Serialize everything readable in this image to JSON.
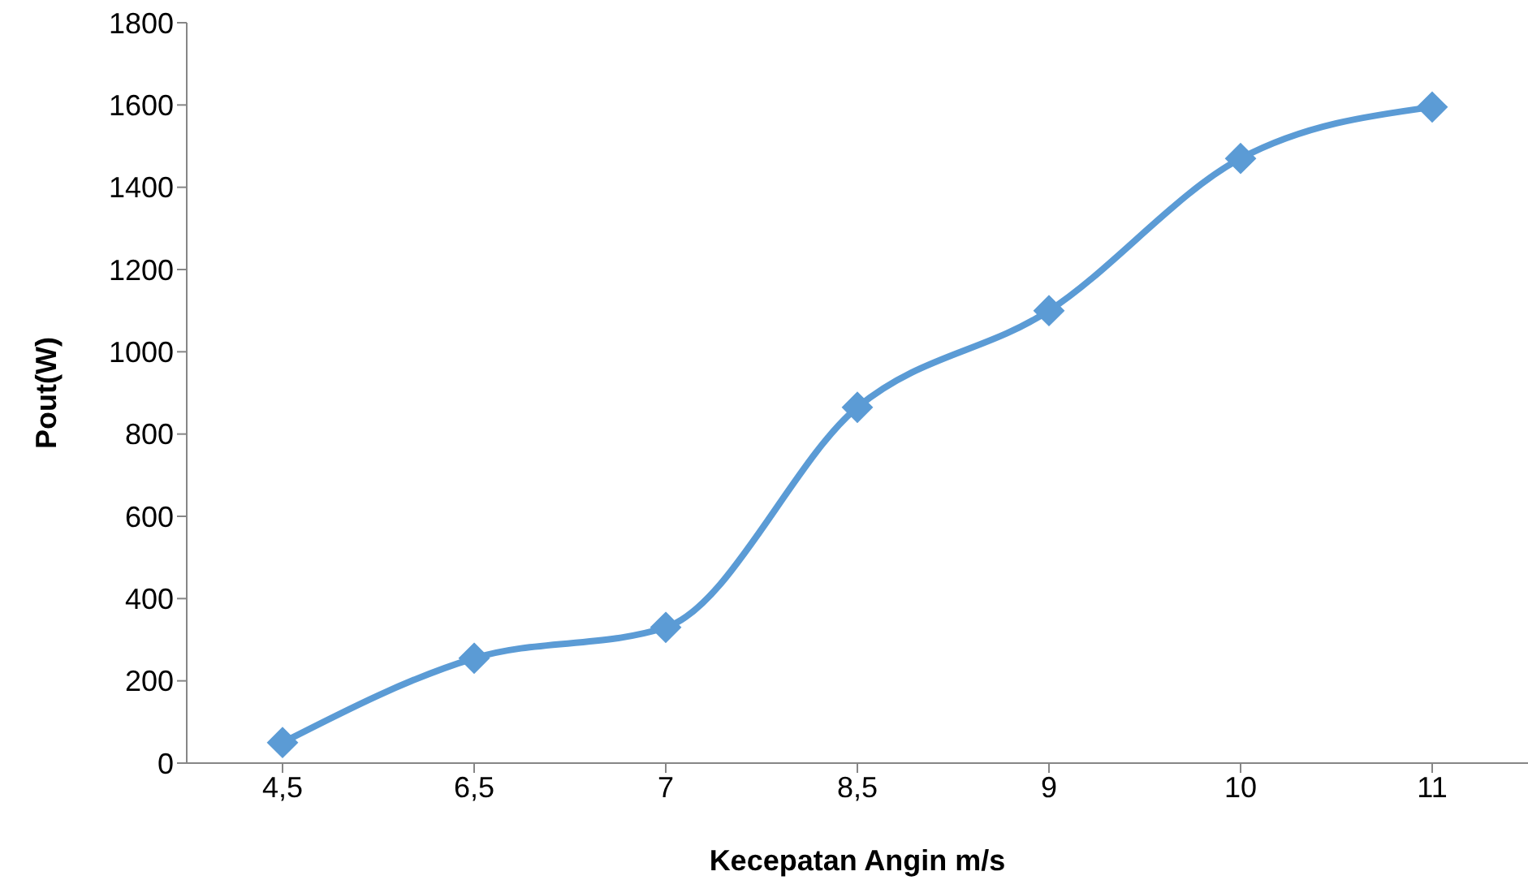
{
  "chart_data": {
    "type": "line",
    "xlabel": "Kecepatan Angin m/s",
    "ylabel": "Pout(W)",
    "categories": [
      "4,5",
      "6,5",
      "7",
      "8,5",
      "9",
      "10",
      "11"
    ],
    "series": [
      {
        "color": "#5b9bd5",
        "values": [
          50,
          255,
          330,
          865,
          1100,
          1470,
          1595
        ]
      }
    ],
    "ylim": [
      0,
      1800
    ],
    "yticks": [
      0,
      200,
      400,
      600,
      800,
      1000,
      1200,
      1400,
      1600,
      1800
    ],
    "grid": false,
    "legend": false,
    "marker": "diamond",
    "line_style": "solid"
  }
}
